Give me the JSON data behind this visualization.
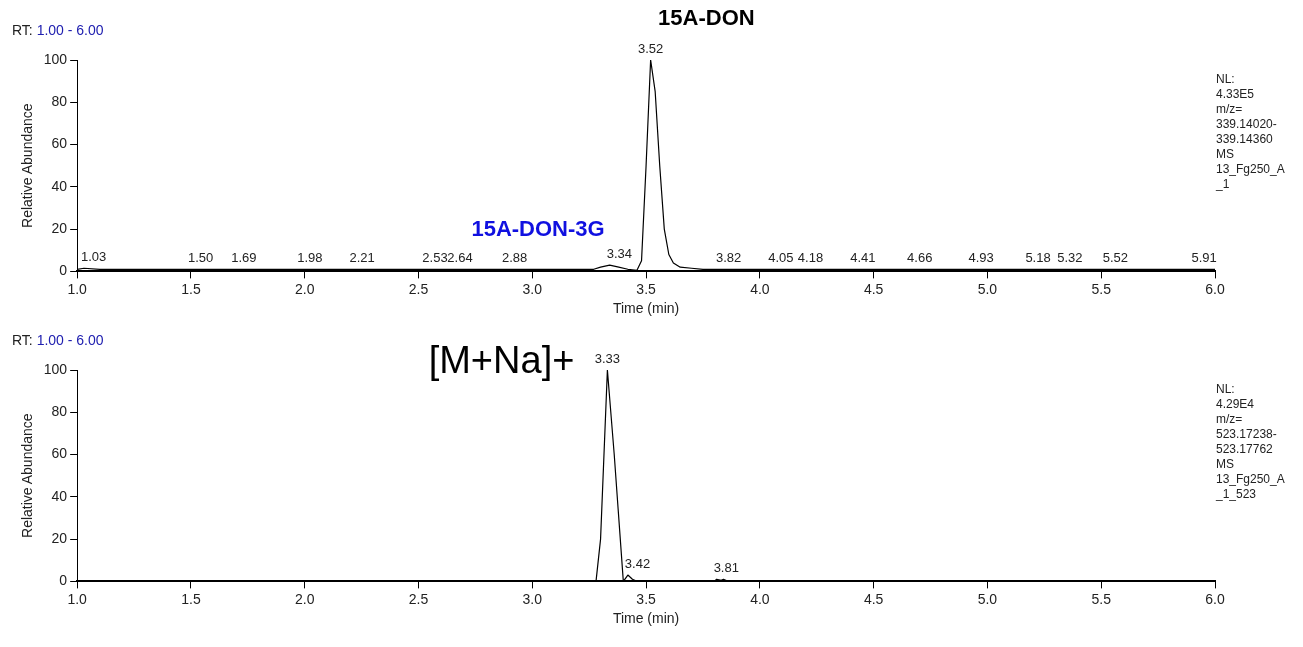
{
  "chart_data": [
    {
      "type": "line",
      "title": "15A-DON",
      "xlabel": "Time (min)",
      "ylabel": "Relative Abundance",
      "xlim": [
        1,
        6
      ],
      "ylim": [
        0,
        100
      ],
      "xticks": [
        {
          "value": 1,
          "label": "1.0"
        },
        {
          "value": 1.5,
          "label": "1.5"
        },
        {
          "value": 2,
          "label": "2.0"
        },
        {
          "value": 2.5,
          "label": "2.5"
        },
        {
          "value": 3,
          "label": "3.0"
        },
        {
          "value": 3.5,
          "label": "3.5"
        },
        {
          "value": 4,
          "label": "4.0"
        },
        {
          "value": 4.5,
          "label": "4.5"
        },
        {
          "value": 5,
          "label": "5.0"
        },
        {
          "value": 5.5,
          "label": "5.5"
        },
        {
          "value": 6,
          "label": "6.0"
        }
      ],
      "yticks": [
        0,
        20,
        40,
        60,
        80,
        100
      ],
      "grid": false,
      "legend": false,
      "marker": "none",
      "series": [
        {
          "color": "#000000",
          "x": [
            1.0,
            1.03,
            1.1,
            1.2,
            1.3,
            1.4,
            1.5,
            1.6,
            1.69,
            1.8,
            1.9,
            1.98,
            2.1,
            2.21,
            2.3,
            2.4,
            2.53,
            2.6,
            2.64,
            2.7,
            2.8,
            2.88,
            3.0,
            3.1,
            3.2,
            3.27,
            3.3,
            3.34,
            3.38,
            3.42,
            3.46,
            3.48,
            3.5,
            3.52,
            3.54,
            3.56,
            3.58,
            3.6,
            3.62,
            3.65,
            3.7,
            3.75,
            3.82,
            3.9,
            4.0,
            4.05,
            4.18,
            4.3,
            4.41,
            4.5,
            4.66,
            4.8,
            4.93,
            5.0,
            5.18,
            5.32,
            5.4,
            5.52,
            5.7,
            5.91,
            6.0
          ],
          "values": [
            1,
            1.5,
            1,
            1,
            1,
            1,
            1,
            1,
            1,
            1,
            1,
            1,
            1,
            1,
            1,
            1,
            1,
            1,
            1,
            1,
            1,
            1,
            1,
            1,
            1,
            1,
            2,
            3,
            2,
            1,
            0.5,
            5,
            50,
            100,
            85,
            50,
            20,
            8,
            4,
            2,
            1.5,
            1,
            1,
            1,
            1,
            1,
            1,
            1,
            1,
            1,
            1,
            1,
            1,
            1,
            1,
            1,
            1,
            1,
            1,
            1,
            1
          ]
        }
      ],
      "annotations": [
        "RT: 1.00 - 6.00",
        "NL:\n4.33E5\nm/z=\n339.14020-\n339.14360\nMS\n13_Fg250_A\n_1",
        {
          "text": "15A-DON-3G",
          "x": 3.34,
          "y": 3
        },
        {
          "text": "3.52",
          "x": 3.52,
          "y": 100
        },
        {
          "text": "3.34",
          "x": 3.34,
          "y": 3
        },
        {
          "text": "1.03",
          "x": 1.03,
          "y": 1.5
        },
        {
          "text": "1.50",
          "x": 1.5,
          "y": 1
        },
        {
          "text": "1.69",
          "x": 1.69,
          "y": 1
        },
        {
          "text": "1.98",
          "x": 1.98,
          "y": 1
        },
        {
          "text": "2.21",
          "x": 2.21,
          "y": 1
        },
        {
          "text": "2.53",
          "x": 2.53,
          "y": 1
        },
        {
          "text": "2.64",
          "x": 2.64,
          "y": 1
        },
        {
          "text": "2.88",
          "x": 2.88,
          "y": 1
        },
        {
          "text": "3.82",
          "x": 3.82,
          "y": 1
        },
        {
          "text": "4.05",
          "x": 4.05,
          "y": 1
        },
        {
          "text": "4.18",
          "x": 4.18,
          "y": 1
        },
        {
          "text": "4.41",
          "x": 4.41,
          "y": 1
        },
        {
          "text": "4.66",
          "x": 4.66,
          "y": 1
        },
        {
          "text": "4.93",
          "x": 4.93,
          "y": 1
        },
        {
          "text": "5.18",
          "x": 5.18,
          "y": 1
        },
        {
          "text": "5.32",
          "x": 5.32,
          "y": 1
        },
        {
          "text": "5.52",
          "x": 5.52,
          "y": 1
        },
        {
          "text": "5.91",
          "x": 5.91,
          "y": 1
        }
      ]
    },
    {
      "type": "line",
      "title": "[M+Na]+",
      "xlabel": "Time (min)",
      "ylabel": "Relative Abundance",
      "xlim": [
        1,
        6
      ],
      "ylim": [
        0,
        100
      ],
      "xticks": [
        {
          "value": 1,
          "label": "1.0"
        },
        {
          "value": 1.5,
          "label": "1.5"
        },
        {
          "value": 2,
          "label": "2.0"
        },
        {
          "value": 2.5,
          "label": "2.5"
        },
        {
          "value": 3,
          "label": "3.0"
        },
        {
          "value": 3.5,
          "label": "3.5"
        },
        {
          "value": 4,
          "label": "4.0"
        },
        {
          "value": 4.5,
          "label": "4.5"
        },
        {
          "value": 5,
          "label": "5.0"
        },
        {
          "value": 5.5,
          "label": "5.5"
        },
        {
          "value": 6,
          "label": "6.0"
        }
      ],
      "yticks": [
        0,
        20,
        40,
        60,
        80,
        100
      ],
      "grid": false,
      "legend": false,
      "marker": "none",
      "series": [
        {
          "color": "#000000",
          "x": [
            1.0,
            3.28,
            3.3,
            3.33,
            3.36,
            3.4,
            3.42,
            3.44,
            3.46,
            3.8,
            3.81,
            3.83,
            3.84,
            3.86,
            6.0
          ],
          "values": [
            0,
            0,
            20,
            100,
            60,
            0,
            3,
            1,
            0,
            0,
            1,
            0.5,
            1,
            0,
            0
          ]
        }
      ],
      "annotations": [
        "RT: 1.00 - 6.00",
        "NL:\n4.29E4\nm/z=\n523.17238-\n523.17762\nMS\n13_Fg250_A\n_1_523",
        {
          "text": "3.33",
          "x": 3.33,
          "y": 100
        },
        {
          "text": "3.42",
          "x": 3.42,
          "y": 3
        },
        {
          "text": "3.81",
          "x": 3.81,
          "y": 1
        }
      ]
    }
  ]
}
